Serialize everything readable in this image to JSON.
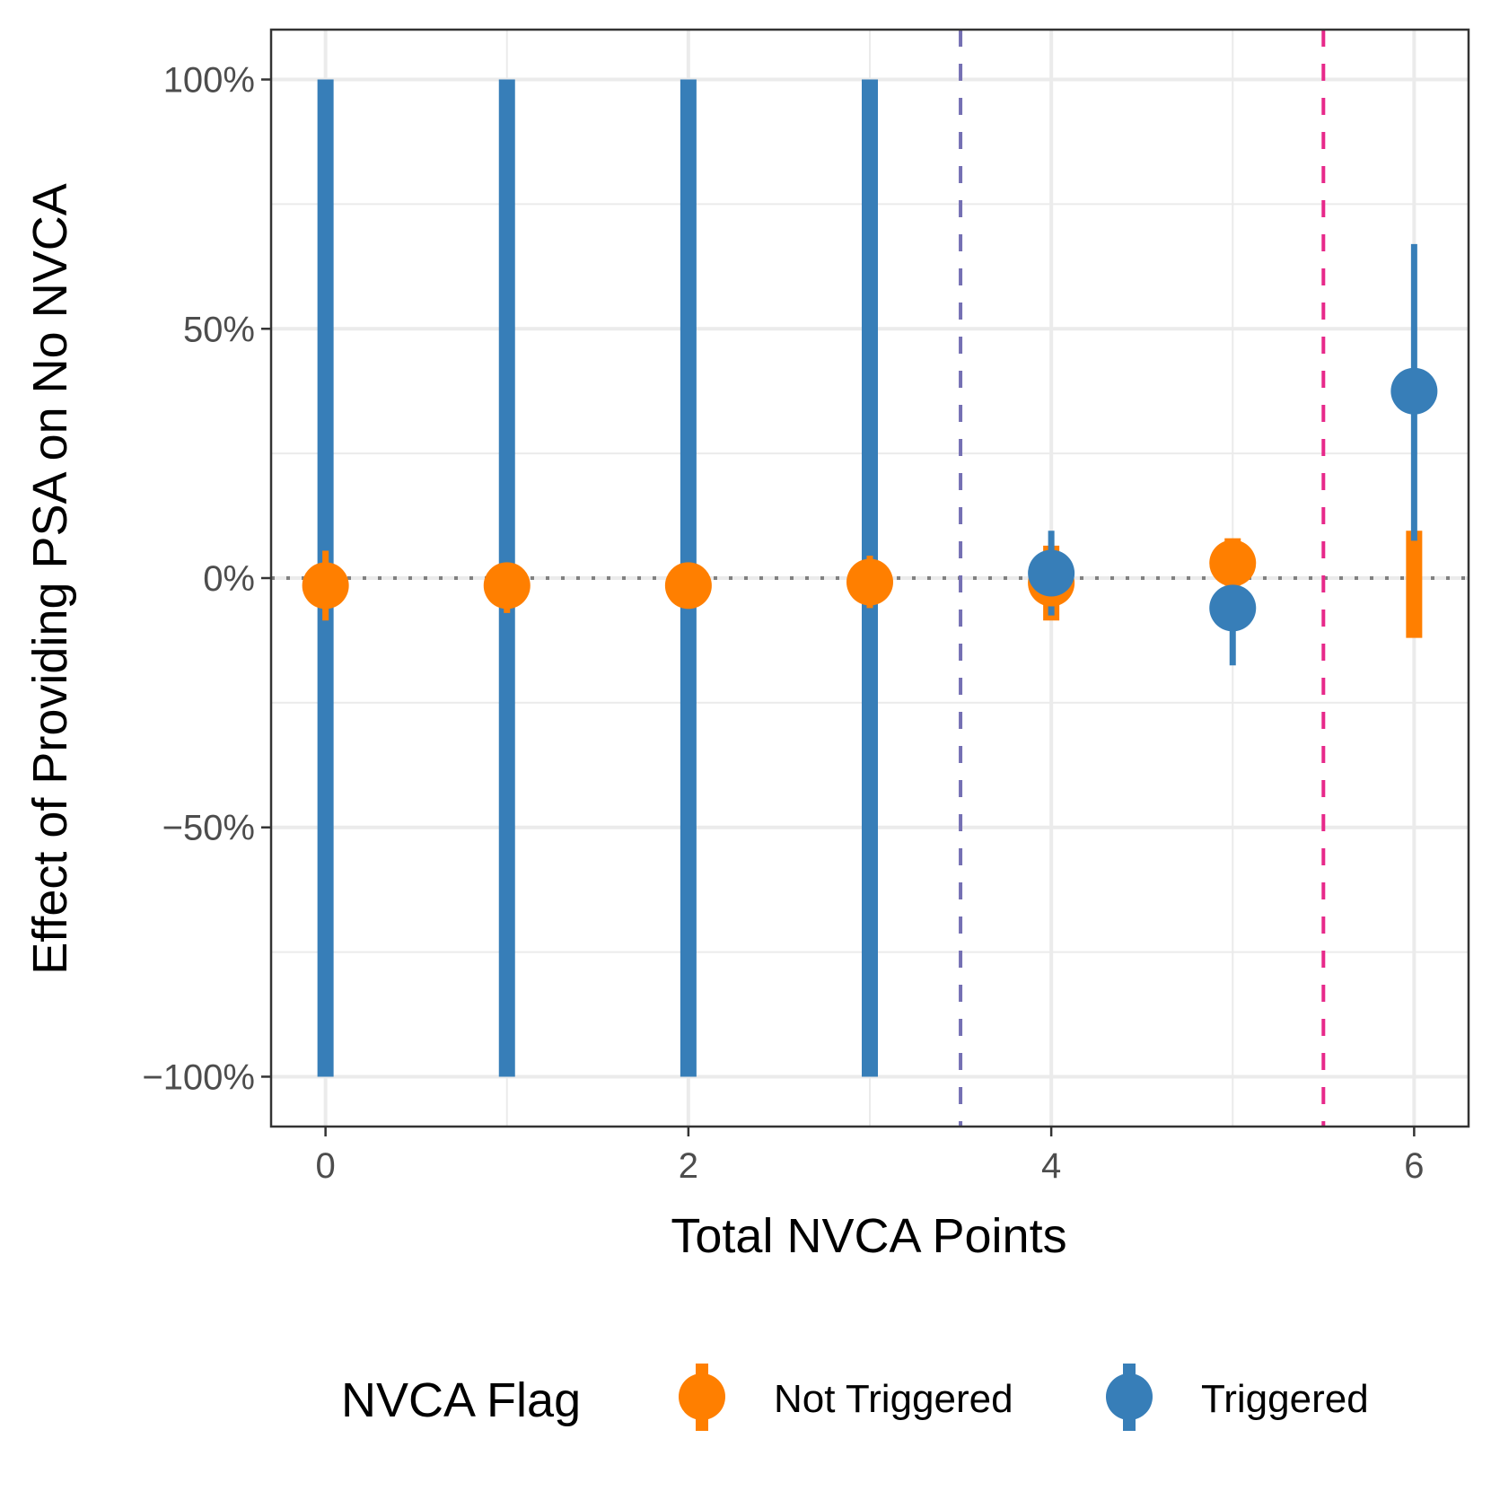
{
  "chart_data": {
    "type": "scatter",
    "title": "",
    "xlabel": "Total NVCA Points",
    "ylabel": "Effect of Providing PSA on No NVCA",
    "xlim": [
      -0.3,
      6.3
    ],
    "ylim": [
      -110,
      110
    ],
    "x_ticks": [
      0,
      2,
      4,
      6
    ],
    "x_tick_labels": [
      "0",
      "2",
      "4",
      "6"
    ],
    "y_ticks": [
      -100,
      -50,
      0,
      50,
      100
    ],
    "y_tick_labels": [
      "−100%",
      "−50%",
      "0%",
      "50%",
      "100%"
    ],
    "grid": true,
    "reference_lines": [
      {
        "name": "zero",
        "axis": "y",
        "value": 0,
        "style": "dotted",
        "color": "#808080"
      },
      {
        "name": "threshold-low",
        "axis": "x",
        "value": 3.5,
        "style": "dashed",
        "color": "#7570b3"
      },
      {
        "name": "threshold-high",
        "axis": "x",
        "value": 5.5,
        "style": "dashed",
        "color": "#e7298a"
      }
    ],
    "series": [
      {
        "name": "Not Triggered",
        "color": "#ff7f00",
        "points": [
          {
            "x": 0,
            "estimate": -1.5,
            "lower": -8.5,
            "upper": 5.5
          },
          {
            "x": 1,
            "estimate": -1.5,
            "lower": -7,
            "upper": 3
          },
          {
            "x": 2,
            "estimate": -1.5,
            "lower": -6,
            "upper": 3
          },
          {
            "x": 3,
            "estimate": -0.8,
            "lower": -6,
            "upper": 4.5
          },
          {
            "x": 4,
            "estimate": -1,
            "lower": -8.5,
            "upper": 6.5
          },
          {
            "x": 5,
            "estimate": 3,
            "lower": -1.5,
            "upper": 8
          },
          {
            "x": 6,
            "estimate": null,
            "lower": -12,
            "upper": 9.5
          }
        ]
      },
      {
        "name": "Triggered",
        "color": "#377eb8",
        "points": [
          {
            "x": 0,
            "estimate": null,
            "lower": -100,
            "upper": 100
          },
          {
            "x": 1,
            "estimate": null,
            "lower": -100,
            "upper": 100
          },
          {
            "x": 2,
            "estimate": null,
            "lower": -100,
            "upper": 100
          },
          {
            "x": 3,
            "estimate": null,
            "lower": -100,
            "upper": 100
          },
          {
            "x": 4,
            "estimate": 1,
            "lower": -7.5,
            "upper": 9.5
          },
          {
            "x": 5,
            "estimate": -6,
            "lower": -17.5,
            "upper": 5.5
          },
          {
            "x": 6,
            "estimate": 37.5,
            "lower": 7.5,
            "upper": 67
          }
        ]
      }
    ],
    "legend": {
      "title": "NVCA Flag",
      "position": "bottom",
      "entries": [
        "Not Triggered",
        "Triggered"
      ]
    }
  }
}
